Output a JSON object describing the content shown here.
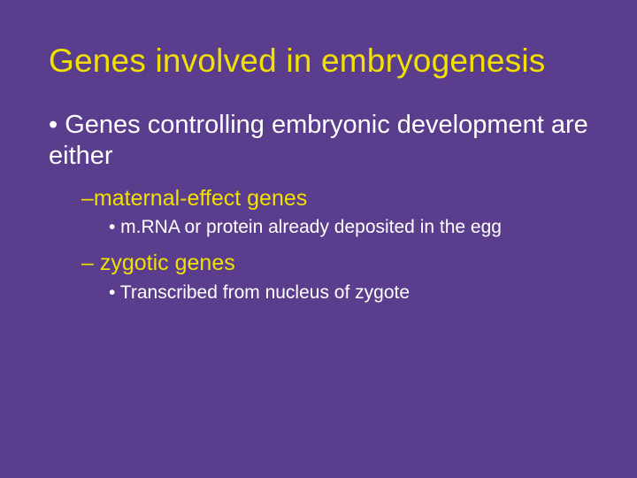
{
  "colors": {
    "background": "#5a3d8c",
    "title": "#f2e000",
    "level1_text": "#ffffff",
    "level2_text": "#f2e000",
    "level3_text": "#ffffff"
  },
  "typography": {
    "title_fontsize": 37,
    "l1_fontsize": 29,
    "l2_fontsize": 25,
    "l3_fontsize": 21,
    "font_family": "Arial"
  },
  "slide": {
    "title": "Genes involved in embryogenesis",
    "bullets": {
      "b1": "• Genes controlling embryonic development are either",
      "b2": "–maternal-effect genes",
      "b3": "• m.RNA or protein already deposited in the egg",
      "b4": "– zygotic genes",
      "b5": "• Transcribed from nucleus of zygote"
    }
  }
}
